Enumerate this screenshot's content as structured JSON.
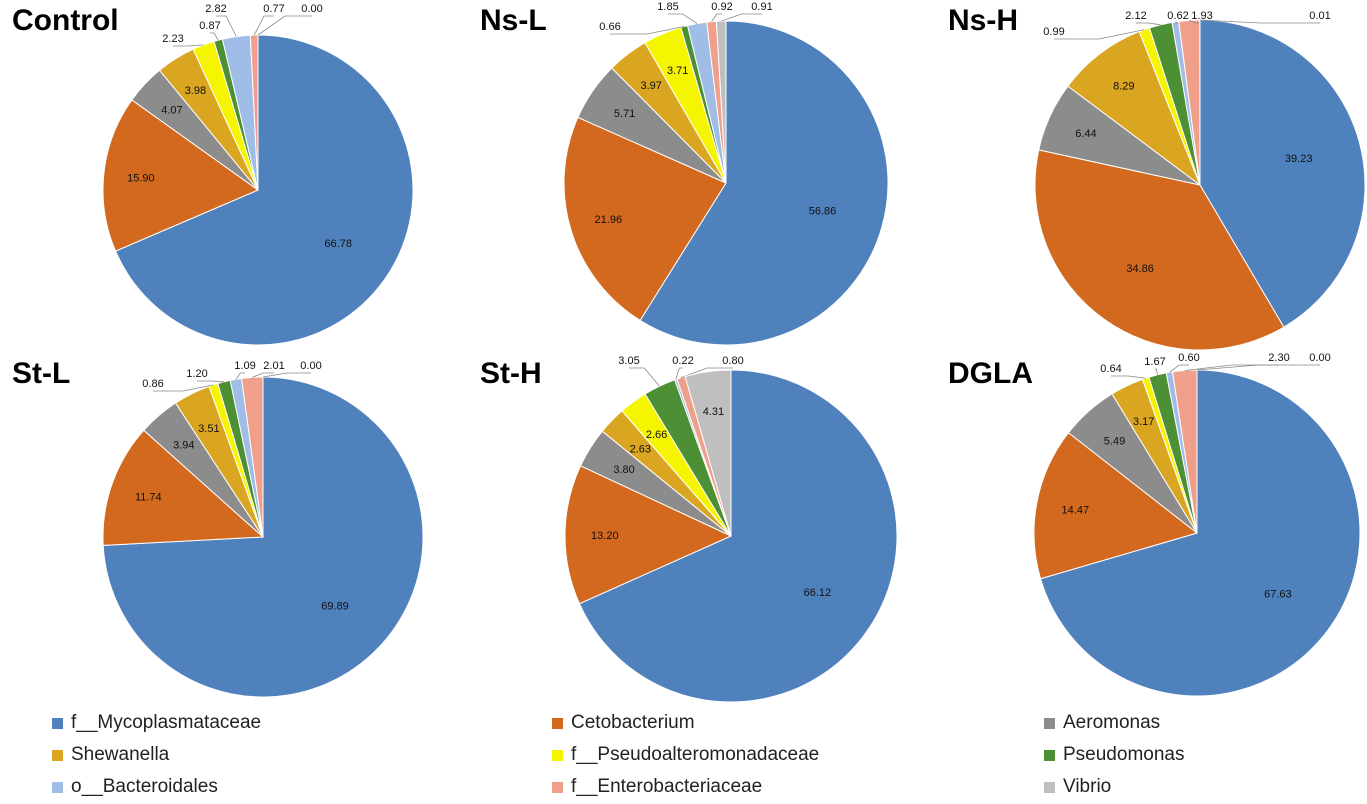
{
  "chart_data": [
    {
      "type": "pie",
      "title": "Control",
      "labels": [
        "f__Mycoplasmataceae",
        "Cetobacterium",
        "Aeromonas",
        "Shewanella",
        "f__Pseudoalteromonadaceae",
        "Pseudomonas",
        "o__Bacteroidales",
        "f__Enterobacteriaceae",
        "Vibrio"
      ],
      "values": [
        66.78,
        15.9,
        4.07,
        3.98,
        2.23,
        0.87,
        2.82,
        0.77,
        0.0
      ],
      "value_labels": [
        "66.78",
        "15.90",
        "4.07",
        "3.98",
        "2.23",
        "0.87",
        "2.82",
        "0.77",
        "0.00"
      ]
    },
    {
      "type": "pie",
      "title": "Ns-L",
      "labels": [
        "f__Mycoplasmataceae",
        "Cetobacterium",
        "Aeromonas",
        "Shewanella",
        "f__Pseudoalteromonadaceae",
        "Pseudomonas",
        "o__Bacteroidales",
        "f__Enterobacteriaceae",
        "Vibrio"
      ],
      "values": [
        56.86,
        21.96,
        5.71,
        3.97,
        3.71,
        0.66,
        1.85,
        0.92,
        0.91
      ],
      "value_labels": [
        "56.86",
        "21.96",
        "5.71",
        "3.97",
        "3.71",
        "0.66",
        "1.85",
        "0.92",
        "0.91"
      ]
    },
    {
      "type": "pie",
      "title": "Ns-H",
      "labels": [
        "f__Mycoplasmataceae",
        "Cetobacterium",
        "Aeromonas",
        "Shewanella",
        "f__Pseudoalteromonadaceae",
        "Pseudomonas",
        "o__Bacteroidales",
        "f__Enterobacteriaceae",
        "Vibrio"
      ],
      "values": [
        39.23,
        34.86,
        6.44,
        8.29,
        0.99,
        2.12,
        0.62,
        1.93,
        0.01
      ],
      "value_labels": [
        "39.23",
        "34.86",
        "6.44",
        "8.29",
        "0.99",
        "2.12",
        "0.62",
        "1.93",
        "0.01"
      ]
    },
    {
      "type": "pie",
      "title": "St-L",
      "labels": [
        "f__Mycoplasmataceae",
        "Cetobacterium",
        "Aeromonas",
        "Shewanella",
        "f__Pseudoalteromonadaceae",
        "Pseudomonas",
        "o__Bacteroidales",
        "f__Enterobacteriaceae",
        "Vibrio"
      ],
      "values": [
        69.89,
        11.74,
        3.94,
        3.51,
        0.86,
        1.2,
        1.09,
        2.01,
        0.0
      ],
      "value_labels": [
        "69.89",
        "11.74",
        "3.94",
        "3.51",
        "0.86",
        "1.20",
        "1.09",
        "2.01",
        "0.00"
      ]
    },
    {
      "type": "pie",
      "title": "St-H",
      "labels": [
        "f__Mycoplasmataceae",
        "Cetobacterium",
        "Aeromonas",
        "Shewanella",
        "f__Pseudoalteromonadaceae",
        "Pseudomonas",
        "o__Bacteroidales",
        "f__Enterobacteriaceae",
        "Vibrio"
      ],
      "values": [
        66.12,
        13.2,
        3.8,
        2.63,
        2.66,
        3.05,
        0.22,
        0.8,
        4.31
      ],
      "value_labels": [
        "66.12",
        "13.20",
        "3.80",
        "2.63",
        "2.66",
        "3.05",
        "0.22",
        "0.80",
        "4.31"
      ]
    },
    {
      "type": "pie",
      "title": "DGLA",
      "labels": [
        "f__Mycoplasmataceae",
        "Cetobacterium",
        "Aeromonas",
        "Shewanella",
        "f__Pseudoalteromonadaceae",
        "Pseudomonas",
        "o__Bacteroidales",
        "f__Enterobacteriaceae",
        "Vibrio"
      ],
      "values": [
        67.63,
        14.47,
        5.49,
        3.17,
        0.64,
        1.67,
        0.6,
        2.3,
        0.0
      ],
      "value_labels": [
        "67.63",
        "14.47",
        "5.49",
        "3.17",
        "0.64",
        "1.67",
        "0.60",
        "2.30",
        "0.00"
      ]
    }
  ],
  "legend": [
    {
      "label": "f__Mycoplasmataceae",
      "color": "#4f81bd"
    },
    {
      "label": "Cetobacterium",
      "color": "#d2691e"
    },
    {
      "label": "Aeromonas",
      "color": "#8c8c8c"
    },
    {
      "label": "Shewanella",
      "color": "#daa520"
    },
    {
      "label": "f__Pseudoalteromonadaceae",
      "color": "#f5f500"
    },
    {
      "label": "Pseudomonas",
      "color": "#4c8f34"
    },
    {
      "label": "o__Bacteroidales",
      "color": "#9fbde6"
    },
    {
      "label": "f__Enterobacteriaceae",
      "color": "#ef9f8a"
    },
    {
      "label": "Vibrio",
      "color": "#bfbfbf"
    }
  ],
  "series_colors": [
    "#4f81bd",
    "#d2691e",
    "#8c8c8c",
    "#daa520",
    "#f5f500",
    "#4c8f34",
    "#9fbde6",
    "#ef9f8a",
    "#bfbfbf"
  ]
}
